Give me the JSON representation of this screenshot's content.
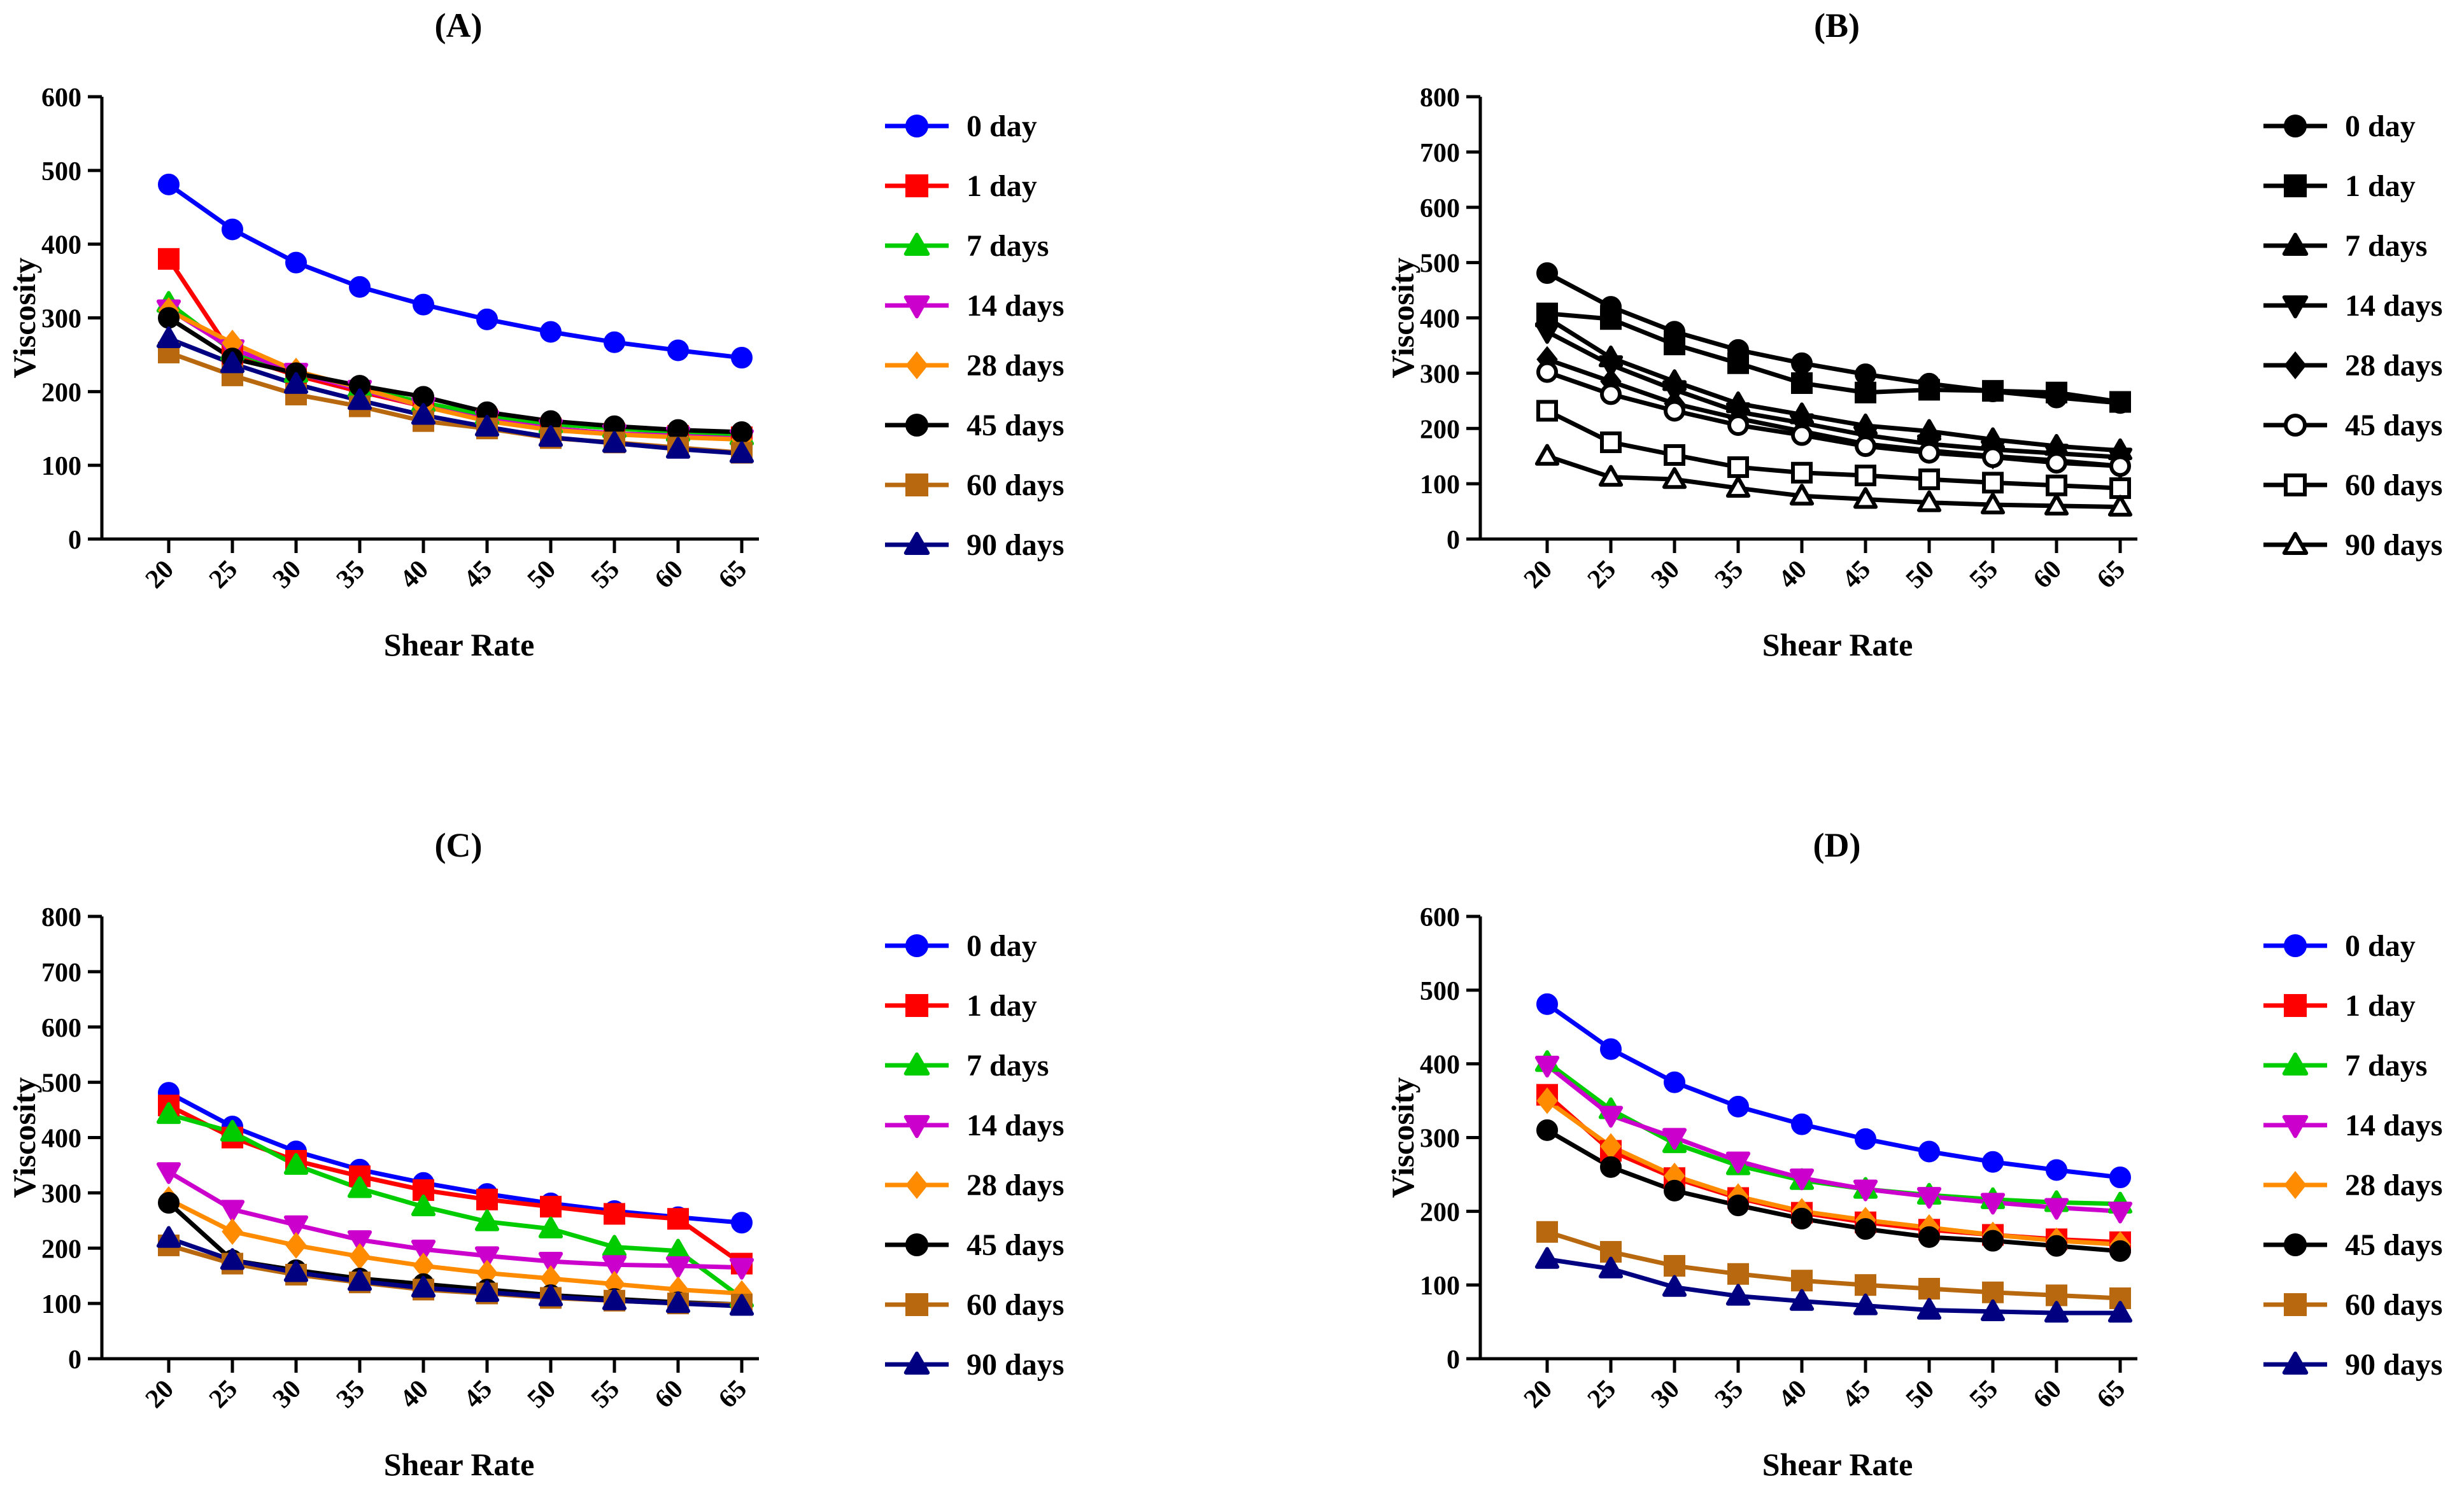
{
  "figure": {
    "panels_count": 4
  },
  "chart_data": [
    {
      "panel": "(A)",
      "type": "line",
      "xlabel": "Shear Rate",
      "ylabel": "Viscosity",
      "x": [
        20,
        25,
        30,
        35,
        40,
        45,
        50,
        55,
        60,
        65
      ],
      "ylim": [
        0,
        600
      ],
      "yticks": [
        0,
        100,
        200,
        300,
        400,
        500,
        600
      ],
      "series": [
        {
          "name": "0 day",
          "color": "#0000ff",
          "marker": "circle",
          "fill": true,
          "values": [
            481,
            420,
            375,
            342,
            318,
            298,
            281,
            267,
            256,
            246
          ]
        },
        {
          "name": "1 day",
          "color": "#ff0000",
          "marker": "square",
          "fill": true,
          "values": [
            380,
            250,
            222,
            200,
            180,
            162,
            150,
            143,
            140,
            138
          ]
        },
        {
          "name": "7 days",
          "color": "#00cc00",
          "marker": "triangle-up",
          "fill": true,
          "values": [
            320,
            255,
            225,
            205,
            185,
            168,
            156,
            150,
            145,
            140
          ]
        },
        {
          "name": "14 days",
          "color": "#cc00cc",
          "marker": "triangle-down",
          "fill": true,
          "values": [
            312,
            258,
            226,
            203,
            180,
            162,
            150,
            143,
            140,
            136
          ]
        },
        {
          "name": "28 days",
          "color": "#ff8c00",
          "marker": "diamond",
          "fill": true,
          "values": [
            310,
            266,
            228,
            205,
            180,
            160,
            148,
            142,
            138,
            135
          ]
        },
        {
          "name": "45 days",
          "color": "#000000",
          "marker": "circle",
          "fill": true,
          "values": [
            300,
            245,
            225,
            208,
            193,
            172,
            160,
            153,
            148,
            145
          ]
        },
        {
          "name": "60 days",
          "color": "#b8690f",
          "marker": "square",
          "fill": true,
          "values": [
            253,
            222,
            196,
            180,
            160,
            150,
            137,
            131,
            124,
            117
          ]
        },
        {
          "name": "90 days",
          "color": "#000080",
          "marker": "triangle-up",
          "fill": true,
          "values": [
            272,
            238,
            210,
            188,
            168,
            152,
            138,
            130,
            122,
            116
          ]
        }
      ]
    },
    {
      "panel": "(B)",
      "type": "line",
      "xlabel": "Shear Rate",
      "ylabel": "Viscosity",
      "x": [
        20,
        25,
        30,
        35,
        40,
        45,
        50,
        55,
        60,
        65
      ],
      "ylim": [
        0,
        800
      ],
      "yticks": [
        0,
        100,
        200,
        300,
        400,
        500,
        600,
        700,
        800
      ],
      "series": [
        {
          "name": "0 day",
          "color": "#000000",
          "marker": "circle",
          "fill": true,
          "values": [
            481,
            420,
            375,
            342,
            318,
            298,
            281,
            267,
            256,
            246
          ]
        },
        {
          "name": "1 day",
          "color": "#000000",
          "marker": "square",
          "fill": true,
          "values": [
            408,
            398,
            352,
            318,
            282,
            265,
            270,
            268,
            265,
            248
          ]
        },
        {
          "name": "7 days",
          "color": "#000000",
          "marker": "triangle-up",
          "fill": true,
          "values": [
            400,
            328,
            285,
            245,
            225,
            205,
            195,
            180,
            168,
            160
          ]
        },
        {
          "name": "14 days",
          "color": "#000000",
          "marker": "triangle-down",
          "fill": true,
          "values": [
            375,
            315,
            270,
            230,
            210,
            188,
            172,
            162,
            155,
            148
          ]
        },
        {
          "name": "28 days",
          "color": "#000000",
          "marker": "diamond",
          "fill": true,
          "values": [
            325,
            285,
            245,
            218,
            195,
            172,
            160,
            150,
            142,
            132
          ]
        },
        {
          "name": "45 days",
          "color": "#000000",
          "marker": "circle",
          "fill": false,
          "values": [
            302,
            262,
            232,
            206,
            188,
            168,
            156,
            148,
            138,
            132
          ]
        },
        {
          "name": "60 days",
          "color": "#000000",
          "marker": "square",
          "fill": false,
          "values": [
            232,
            175,
            152,
            130,
            120,
            115,
            108,
            102,
            97,
            92
          ]
        },
        {
          "name": "90 days",
          "color": "#000000",
          "marker": "triangle-up",
          "fill": false,
          "values": [
            150,
            112,
            108,
            92,
            78,
            72,
            66,
            62,
            60,
            58
          ]
        }
      ]
    },
    {
      "panel": "(C)",
      "type": "line",
      "xlabel": "Shear Rate",
      "ylabel": "Viscosity",
      "x": [
        20,
        25,
        30,
        35,
        40,
        45,
        50,
        55,
        60,
        65
      ],
      "ylim": [
        0,
        800
      ],
      "yticks": [
        0,
        100,
        200,
        300,
        400,
        500,
        600,
        700,
        800
      ],
      "series": [
        {
          "name": "0 day",
          "color": "#0000ff",
          "marker": "circle",
          "fill": true,
          "values": [
            481,
            420,
            375,
            342,
            318,
            298,
            281,
            267,
            256,
            246
          ]
        },
        {
          "name": "1 day",
          "color": "#ff0000",
          "marker": "square",
          "fill": true,
          "values": [
            458,
            400,
            358,
            330,
            305,
            288,
            275,
            262,
            253,
            172
          ]
        },
        {
          "name": "7 days",
          "color": "#00cc00",
          "marker": "triangle-up",
          "fill": true,
          "values": [
            442,
            410,
            350,
            308,
            275,
            248,
            235,
            202,
            195,
            110
          ]
        },
        {
          "name": "14 days",
          "color": "#cc00cc",
          "marker": "triangle-down",
          "fill": true,
          "values": [
            338,
            270,
            242,
            215,
            198,
            186,
            176,
            170,
            168,
            165
          ]
        },
        {
          "name": "28 days",
          "color": "#ff8c00",
          "marker": "diamond",
          "fill": true,
          "values": [
            288,
            230,
            205,
            185,
            168,
            155,
            145,
            135,
            125,
            118
          ]
        },
        {
          "name": "45 days",
          "color": "#000000",
          "marker": "circle",
          "fill": true,
          "values": [
            282,
            178,
            160,
            145,
            135,
            125,
            115,
            108,
            102,
            98
          ]
        },
        {
          "name": "60 days",
          "color": "#b8690f",
          "marker": "square",
          "fill": true,
          "values": [
            205,
            172,
            152,
            138,
            125,
            118,
            110,
            105,
            100,
            98
          ]
        },
        {
          "name": "90 days",
          "color": "#000080",
          "marker": "triangle-up",
          "fill": true,
          "values": [
            218,
            178,
            156,
            140,
            128,
            120,
            112,
            105,
            100,
            95
          ]
        }
      ]
    },
    {
      "panel": "(D)",
      "type": "line",
      "xlabel": "Shear Rate",
      "ylabel": "Viscosity",
      "x": [
        20,
        25,
        30,
        35,
        40,
        45,
        50,
        55,
        60,
        65
      ],
      "ylim": [
        0,
        600
      ],
      "yticks": [
        0,
        100,
        200,
        300,
        400,
        500,
        600
      ],
      "series": [
        {
          "name": "0 day",
          "color": "#0000ff",
          "marker": "circle",
          "fill": true,
          "values": [
            481,
            420,
            375,
            342,
            318,
            298,
            281,
            267,
            256,
            246
          ]
        },
        {
          "name": "1 day",
          "color": "#ff0000",
          "marker": "square",
          "fill": true,
          "values": [
            358,
            282,
            245,
            218,
            198,
            185,
            175,
            168,
            162,
            158
          ]
        },
        {
          "name": "7 days",
          "color": "#00cc00",
          "marker": "triangle-up",
          "fill": true,
          "values": [
            402,
            338,
            292,
            262,
            242,
            230,
            222,
            216,
            212,
            210
          ]
        },
        {
          "name": "14 days",
          "color": "#cc00cc",
          "marker": "triangle-down",
          "fill": true,
          "values": [
            398,
            330,
            300,
            268,
            245,
            230,
            220,
            212,
            205,
            200
          ]
        },
        {
          "name": "28 days",
          "color": "#ff8c00",
          "marker": "diamond",
          "fill": true,
          "values": [
            350,
            288,
            248,
            220,
            200,
            188,
            178,
            168,
            160,
            155
          ]
        },
        {
          "name": "45 days",
          "color": "#000000",
          "marker": "circle",
          "fill": true,
          "values": [
            310,
            260,
            228,
            208,
            190,
            176,
            165,
            160,
            153,
            146
          ]
        },
        {
          "name": "60 days",
          "color": "#b8690f",
          "marker": "square",
          "fill": true,
          "values": [
            172,
            145,
            126,
            115,
            106,
            100,
            95,
            90,
            86,
            82
          ]
        },
        {
          "name": "90 days",
          "color": "#000080",
          "marker": "triangle-up",
          "fill": true,
          "values": [
            135,
            122,
            97,
            85,
            78,
            72,
            66,
            64,
            62,
            62
          ]
        }
      ]
    }
  ]
}
